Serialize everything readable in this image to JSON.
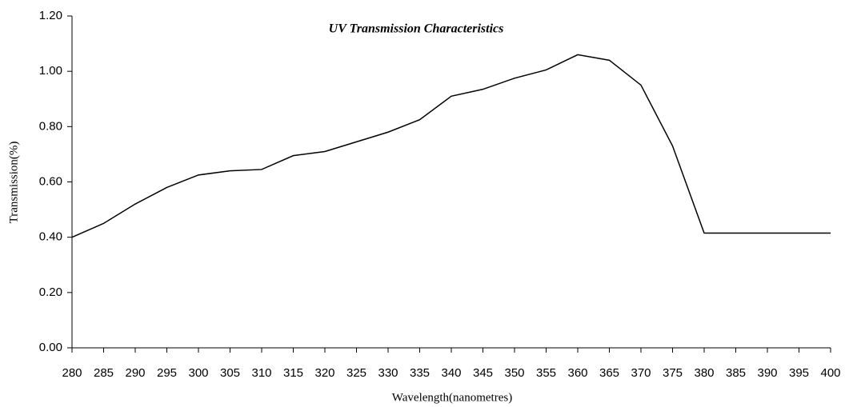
{
  "chart_data": {
    "type": "line",
    "title": "UV Transmission Characteristics",
    "x_label": "Wavelength(nanometres)",
    "y_label": "Transmission(%)",
    "x": [
      280,
      285,
      290,
      295,
      300,
      305,
      310,
      315,
      320,
      325,
      330,
      335,
      340,
      345,
      350,
      355,
      360,
      365,
      370,
      375,
      380,
      385,
      390,
      395,
      400
    ],
    "series": [
      {
        "name": "Transmission",
        "color": "#000000",
        "values": [
          0.4,
          0.45,
          0.52,
          0.58,
          0.625,
          0.64,
          0.645,
          0.695,
          0.71,
          0.745,
          0.78,
          0.825,
          0.91,
          0.935,
          0.975,
          1.005,
          1.06,
          1.04,
          0.95,
          0.73,
          0.415,
          0.415,
          0.415,
          0.415,
          0.415
        ]
      }
    ],
    "xlim": [
      280,
      400
    ],
    "xticks": [
      280,
      285,
      290,
      295,
      300,
      305,
      310,
      315,
      320,
      325,
      330,
      335,
      340,
      345,
      350,
      355,
      360,
      365,
      370,
      375,
      380,
      385,
      390,
      395,
      400
    ],
    "ylim": [
      0,
      1.2
    ],
    "yticks": [
      {
        "value": 0,
        "label": "0.00"
      },
      {
        "value": 0.2,
        "label": "0.20"
      },
      {
        "value": 0.4,
        "label": "0.40"
      },
      {
        "value": 0.6,
        "label": "0.60"
      },
      {
        "value": 0.8,
        "label": "0.80"
      },
      {
        "value": 1.0,
        "label": "1.00"
      },
      {
        "value": 1.2,
        "label": "1.20"
      }
    ],
    "grid": false
  }
}
